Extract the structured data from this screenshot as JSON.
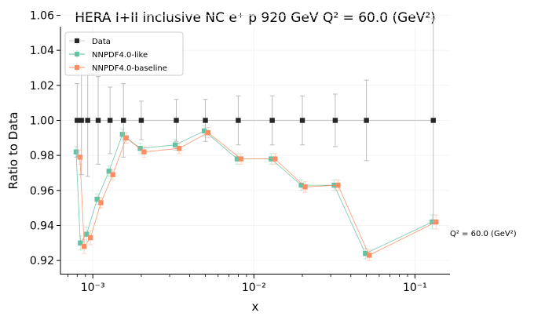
{
  "chart_data": {
    "type": "scatter",
    "title": "HERA I+II inclusive NC e⁺ p 920 GeV Q² = 60.0 (GeV²)",
    "xlabel": "x",
    "ylabel": "Ratio to Data",
    "xscale": "log",
    "xlim": [
      0.00063,
      0.165
    ],
    "ylim": [
      0.912,
      1.0535
    ],
    "x_ticks": [
      0.001,
      0.01,
      0.1
    ],
    "x_tick_labels": [
      "10⁻³",
      "10⁻²",
      "10⁻¹"
    ],
    "y_ticks": [
      0.92,
      0.94,
      0.96,
      0.98,
      1.0,
      1.02,
      1.04,
      1.06
    ],
    "y_tick_labels": [
      "0.92",
      "0.94",
      "0.96",
      "0.98",
      "1.00",
      "1.02",
      "1.04",
      "1.06"
    ],
    "annotation": "Q² = 60.0 (GeV²)",
    "legend_position": "top-left",
    "grid": true,
    "x": [
      0.0008,
      0.00085,
      0.00093,
      0.00108,
      0.00128,
      0.00155,
      0.002,
      0.0033,
      0.005,
      0.008,
      0.013,
      0.02,
      0.032,
      0.05,
      0.13
    ],
    "series": [
      {
        "name": "Data",
        "color": "#262626",
        "marker_offset": 1.0,
        "values": [
          1.0,
          1.0,
          1.0,
          1.0,
          1.0,
          1.0,
          1.0,
          1.0,
          1.0,
          1.0,
          1.0,
          1.0,
          1.0,
          1.0,
          1.0
        ],
        "errors": [
          0.021,
          0.031,
          0.032,
          0.025,
          0.019,
          0.021,
          0.011,
          0.012,
          0.012,
          0.014,
          0.014,
          0.014,
          0.015,
          0.023,
          0.058
        ]
      },
      {
        "name": "NNPDF4.0-like",
        "color": "#66c2a5",
        "marker_offset": 0.985,
        "values": [
          0.982,
          0.93,
          0.935,
          0.955,
          0.971,
          0.992,
          0.984,
          0.986,
          0.994,
          0.978,
          0.978,
          0.963,
          0.963,
          0.924,
          0.942
        ],
        "errors": [
          0.003,
          0.004,
          0.004,
          0.003,
          0.003,
          0.003,
          0.003,
          0.003,
          0.003,
          0.003,
          0.003,
          0.003,
          0.003,
          0.003,
          0.004
        ]
      },
      {
        "name": "NNPDF4.0-baseline",
        "color": "#fc8d62",
        "marker_offset": 1.04,
        "values": [
          0.979,
          0.928,
          0.933,
          0.953,
          0.969,
          0.99,
          0.982,
          0.984,
          0.993,
          0.978,
          0.978,
          0.962,
          0.963,
          0.923,
          0.942
        ],
        "errors": [
          0.004,
          0.004,
          0.004,
          0.003,
          0.003,
          0.003,
          0.003,
          0.003,
          0.003,
          0.003,
          0.003,
          0.003,
          0.003,
          0.003,
          0.004
        ]
      }
    ]
  }
}
